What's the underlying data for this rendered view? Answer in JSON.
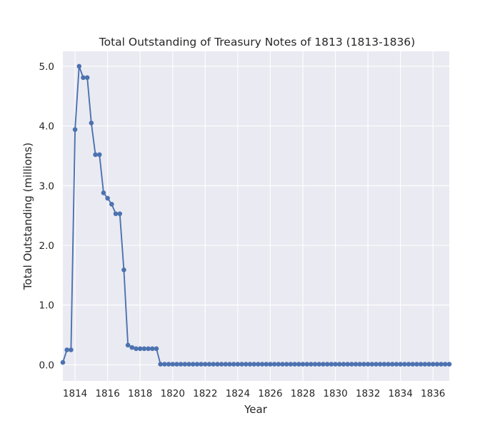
{
  "chart_data": {
    "type": "line",
    "title": "Total Outstanding of Treasury Notes of 1813 (1813-1836)",
    "xlabel": "Year",
    "ylabel": "Total Outstanding (millions)",
    "xlim": [
      1813.25,
      1837.0
    ],
    "ylim": [
      -0.27,
      5.25
    ],
    "xticks": [
      "1814",
      "1816",
      "1818",
      "1820",
      "1822",
      "1824",
      "1826",
      "1828",
      "1830",
      "1832",
      "1834",
      "1836"
    ],
    "yticks": [
      "0.0",
      "1.0",
      "2.0",
      "3.0",
      "4.0",
      "5.0"
    ],
    "grid": true,
    "marker": "circle",
    "line_color": "#4c72b0",
    "background_color": "#eaeaf2",
    "series": [
      {
        "x": [
          1813.25,
          1813.5,
          1813.75,
          1814.0,
          1814.25,
          1814.5,
          1814.75,
          1815.0,
          1815.25,
          1815.5,
          1815.75,
          1816.0,
          1816.25,
          1816.5,
          1816.75,
          1817.0,
          1817.25,
          1817.5,
          1817.75,
          1818.0,
          1818.25,
          1818.5,
          1818.75,
          1819.0,
          1819.25,
          1819.5,
          1819.75,
          1820.0,
          1820.25,
          1820.5,
          1820.75,
          1821.0,
          1821.25,
          1821.5,
          1821.75,
          1822.0,
          1822.25,
          1822.5,
          1822.75,
          1823.0,
          1823.25,
          1823.5,
          1823.75,
          1824.0,
          1824.25,
          1824.5,
          1824.75,
          1825.0,
          1825.25,
          1825.5,
          1825.75,
          1826.0,
          1826.25,
          1826.5,
          1826.75,
          1827.0,
          1827.25,
          1827.5,
          1827.75,
          1828.0,
          1828.25,
          1828.5,
          1828.75,
          1829.0,
          1829.25,
          1829.5,
          1829.75,
          1830.0,
          1830.25,
          1830.5,
          1830.75,
          1831.0,
          1831.25,
          1831.5,
          1831.75,
          1832.0,
          1832.25,
          1832.5,
          1832.75,
          1833.0,
          1833.25,
          1833.5,
          1833.75,
          1834.0,
          1834.25,
          1834.5,
          1834.75,
          1835.0,
          1835.25,
          1835.5,
          1835.75,
          1836.0,
          1836.25,
          1836.5,
          1836.75,
          1837.0
        ],
        "y": [
          0.04,
          0.25,
          0.25,
          3.94,
          5.0,
          4.81,
          4.81,
          4.05,
          3.52,
          3.52,
          2.88,
          2.79,
          2.69,
          2.53,
          2.53,
          1.59,
          0.33,
          0.29,
          0.27,
          0.27,
          0.27,
          0.27,
          0.27,
          0.27,
          0.01,
          0.01,
          0.01,
          0.01,
          0.01,
          0.01,
          0.01,
          0.01,
          0.01,
          0.01,
          0.01,
          0.01,
          0.01,
          0.01,
          0.01,
          0.01,
          0.01,
          0.01,
          0.01,
          0.01,
          0.01,
          0.01,
          0.01,
          0.01,
          0.01,
          0.01,
          0.01,
          0.01,
          0.01,
          0.01,
          0.01,
          0.01,
          0.01,
          0.01,
          0.01,
          0.01,
          0.01,
          0.01,
          0.01,
          0.01,
          0.01,
          0.01,
          0.01,
          0.01,
          0.01,
          0.01,
          0.01,
          0.01,
          0.01,
          0.01,
          0.01,
          0.01,
          0.01,
          0.01,
          0.01,
          0.01,
          0.01,
          0.01,
          0.01,
          0.01,
          0.01,
          0.01,
          0.01,
          0.01,
          0.01,
          0.01,
          0.01,
          0.01,
          0.01,
          0.01,
          0.01,
          0.01
        ]
      }
    ]
  }
}
